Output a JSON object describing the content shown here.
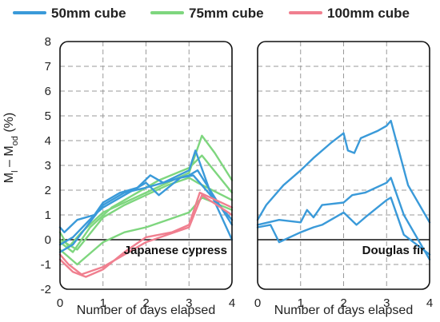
{
  "chart_data": {
    "type": "line",
    "legend": {
      "placement": "top",
      "entries": [
        {
          "name": "50mm cube",
          "color": "#3a9ad9"
        },
        {
          "name": "75mm cube",
          "color": "#7ed67e"
        },
        {
          "name": "100mm cube",
          "color": "#f07f8f"
        }
      ]
    },
    "ylabel": {
      "main": "M",
      "sub1": "l",
      "mid": " – M",
      "sub2": "od",
      "unit": " (%)"
    },
    "ylim": [
      -2,
      8
    ],
    "yticks": [
      "-2",
      "-1",
      "0",
      "1",
      "2",
      "3",
      "4",
      "5",
      "6",
      "7",
      "8"
    ],
    "xlim": [
      0,
      4
    ],
    "xticks": [
      "0",
      "1",
      "2",
      "3",
      "4"
    ],
    "grid": "dashed",
    "panels": [
      {
        "label": "Japanese cypress",
        "xlabel": "Number of days elapsed",
        "series": [
          {
            "group": "75mm cube",
            "points": [
              [
                0,
                0.3
              ],
              [
                0.2,
                -0.3
              ],
              [
                0.5,
                0.3
              ],
              [
                1,
                1.1
              ],
              [
                1.5,
                1.5
              ],
              [
                2,
                1.9
              ],
              [
                2.5,
                2.3
              ],
              [
                3,
                2.7
              ],
              [
                3.3,
                4.2
              ],
              [
                3.6,
                3.5
              ],
              [
                4,
                2.4
              ]
            ]
          },
          {
            "group": "75mm cube",
            "points": [
              [
                0,
                -0.1
              ],
              [
                0.3,
                -0.5
              ],
              [
                0.7,
                0.5
              ],
              [
                1.2,
                1.3
              ],
              [
                1.8,
                1.9
              ],
              [
                2.3,
                2.4
              ],
              [
                3,
                2.9
              ],
              [
                3.3,
                3.4
              ],
              [
                4,
                1.9
              ]
            ]
          },
          {
            "group": "75mm cube",
            "points": [
              [
                0,
                -0.4
              ],
              [
                0.4,
                -1
              ],
              [
                1,
                -0.1
              ],
              [
                1.5,
                0.3
              ],
              [
                2,
                0.5
              ],
              [
                2.5,
                0.8
              ],
              [
                3,
                1.1
              ],
              [
                3.3,
                1.7
              ],
              [
                4,
                1.2
              ]
            ]
          },
          {
            "group": "75mm cube",
            "points": [
              [
                0,
                0
              ],
              [
                0.4,
                -0.4
              ],
              [
                1,
                0.9
              ],
              [
                1.5,
                1.4
              ],
              [
                2,
                1.8
              ],
              [
                2.5,
                2.2
              ],
              [
                3,
                2.5
              ],
              [
                3.2,
                2.3
              ],
              [
                4,
                1.6
              ]
            ]
          },
          {
            "group": "50mm cube",
            "points": [
              [
                0,
                0.5
              ],
              [
                0.1,
                0.3
              ],
              [
                0.4,
                0.8
              ],
              [
                0.8,
                1.0
              ],
              [
                1,
                1.5
              ],
              [
                1.4,
                1.9
              ],
              [
                1.8,
                2.1
              ],
              [
                2.1,
                2.6
              ],
              [
                2.4,
                2.3
              ],
              [
                3,
                2.8
              ],
              [
                3.15,
                3.6
              ],
              [
                3.5,
                1.9
              ],
              [
                4,
                0
              ]
            ]
          },
          {
            "group": "50mm cube",
            "points": [
              [
                0,
                -0.2
              ],
              [
                0.3,
                0.1
              ],
              [
                0.8,
                1.0
              ],
              [
                1,
                1.3
              ],
              [
                1.5,
                1.8
              ],
              [
                2,
                2.3
              ],
              [
                2.3,
                1.8
              ],
              [
                2.8,
                2.5
              ],
              [
                3.1,
                2.6
              ],
              [
                3.3,
                2.2
              ],
              [
                4,
                0.8
              ]
            ]
          },
          {
            "group": "50mm cube",
            "points": [
              [
                0,
                -0.5
              ],
              [
                0.3,
                -0.2
              ],
              [
                1,
                1.4
              ],
              [
                1.5,
                1.9
              ],
              [
                2,
                2.1
              ],
              [
                2.4,
                2.3
              ],
              [
                3,
                2.6
              ],
              [
                3.2,
                2.8
              ],
              [
                4,
                0.6
              ]
            ]
          },
          {
            "group": "100mm cube",
            "points": [
              [
                0,
                -0.6
              ],
              [
                0.2,
                -1.0
              ],
              [
                0.5,
                -1.4
              ],
              [
                1,
                -1.1
              ],
              [
                1.5,
                -0.6
              ],
              [
                2,
                -0.1
              ],
              [
                2.5,
                0.2
              ],
              [
                3,
                0.5
              ],
              [
                3.3,
                1.8
              ],
              [
                4,
                1.0
              ]
            ]
          },
          {
            "group": "100mm cube",
            "points": [
              [
                0,
                -0.8
              ],
              [
                0.3,
                -1.3
              ],
              [
                0.6,
                -1.5
              ],
              [
                1,
                -1.2
              ],
              [
                1.5,
                -0.5
              ],
              [
                2,
                0.1
              ],
              [
                2.6,
                0.3
              ],
              [
                3,
                0.6
              ],
              [
                3.25,
                1.9
              ],
              [
                4,
                1.3
              ]
            ]
          }
        ]
      },
      {
        "label": "Douglas fir",
        "xlabel": "Number of days elapsed",
        "series": [
          {
            "group": "50mm cube",
            "points": [
              [
                0,
                0.8
              ],
              [
                0.2,
                1.4
              ],
              [
                0.6,
                2.2
              ],
              [
                1,
                2.8
              ],
              [
                1.3,
                3.3
              ],
              [
                1.7,
                3.9
              ],
              [
                2,
                4.3
              ],
              [
                2.1,
                3.6
              ],
              [
                2.25,
                3.5
              ],
              [
                2.4,
                4.1
              ],
              [
                2.8,
                4.4
              ],
              [
                3,
                4.6
              ],
              [
                3.1,
                4.8
              ],
              [
                3.5,
                2.2
              ],
              [
                4,
                0.7
              ]
            ]
          },
          {
            "group": "50mm cube",
            "points": [
              [
                0,
                0.6
              ],
              [
                0.5,
                0.8
              ],
              [
                1,
                0.7
              ],
              [
                1.15,
                1.2
              ],
              [
                1.3,
                0.9
              ],
              [
                1.5,
                1.4
              ],
              [
                2,
                1.5
              ],
              [
                2.2,
                1.8
              ],
              [
                2.5,
                1.9
              ],
              [
                3,
                2.3
              ],
              [
                3.1,
                2.5
              ],
              [
                3.4,
                1.0
              ],
              [
                4,
                -0.8
              ]
            ]
          },
          {
            "group": "50mm cube",
            "points": [
              [
                0,
                0.5
              ],
              [
                0.3,
                0.6
              ],
              [
                0.5,
                -0.1
              ],
              [
                1,
                0.3
              ],
              [
                1.3,
                0.5
              ],
              [
                1.5,
                0.6
              ],
              [
                2,
                1.1
              ],
              [
                2.3,
                0.6
              ],
              [
                2.5,
                0.9
              ],
              [
                3,
                1.6
              ],
              [
                3.1,
                1.7
              ],
              [
                3.4,
                0.2
              ],
              [
                4,
                -0.6
              ]
            ]
          }
        ]
      }
    ]
  }
}
